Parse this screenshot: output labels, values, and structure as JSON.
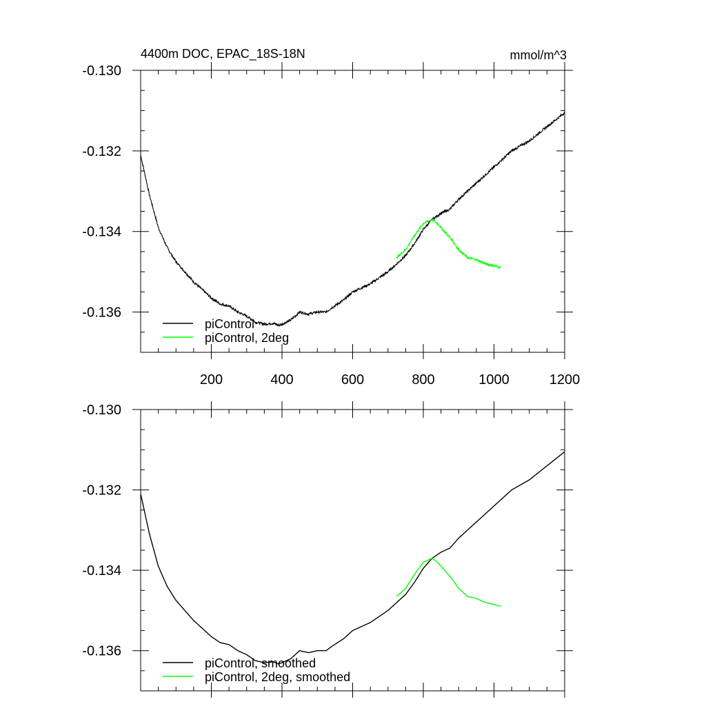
{
  "header": {
    "title": "4400m DOC, EPAC_18S-18N",
    "units": "mmol/m^3"
  },
  "colors": {
    "axis": "#000000",
    "picontrol": "#000000",
    "picontrol_2deg": "#00ff00"
  },
  "chart_data": [
    {
      "type": "line",
      "panel": "top",
      "title": "4400m DOC, EPAC_18S-18N",
      "units": "mmol/m^3",
      "xlabel": "",
      "ylabel": "",
      "xlim": [
        0,
        1200
      ],
      "ylim": [
        -0.137,
        -0.13
      ],
      "xticks": [
        200,
        400,
        600,
        800,
        1000,
        1200
      ],
      "xtick_labels": [
        "200",
        "400",
        "600",
        "800",
        "1000",
        "1200"
      ],
      "yticks": [
        -0.13,
        -0.132,
        -0.134,
        -0.136
      ],
      "ytick_labels": [
        "-0.130",
        "-0.132",
        "-0.134",
        "-0.136"
      ],
      "grid": false,
      "legend_position": "bottom-left",
      "noisy": true,
      "series": [
        {
          "name": "piControl",
          "color": "#000000",
          "x": [
            0,
            25,
            50,
            75,
            100,
            125,
            150,
            175,
            200,
            225,
            250,
            275,
            300,
            325,
            350,
            375,
            390,
            400,
            425,
            450,
            475,
            500,
            525,
            540,
            575,
            600,
            650,
            700,
            725,
            750,
            775,
            800,
            825,
            850,
            875,
            900,
            950,
            1000,
            1050,
            1100,
            1150,
            1200
          ],
          "y": [
            -0.1321,
            -0.1331,
            -0.1339,
            -0.1344,
            -0.13475,
            -0.135,
            -0.13525,
            -0.13545,
            -0.13565,
            -0.1358,
            -0.13585,
            -0.136,
            -0.1361,
            -0.13625,
            -0.1363,
            -0.13628,
            -0.13633,
            -0.1363,
            -0.1362,
            -0.136,
            -0.13605,
            -0.136,
            -0.136,
            -0.1359,
            -0.1357,
            -0.1355,
            -0.1353,
            -0.135,
            -0.1348,
            -0.1346,
            -0.1343,
            -0.13395,
            -0.1337,
            -0.13355,
            -0.13345,
            -0.1332,
            -0.1328,
            -0.1324,
            -0.132,
            -0.13175,
            -0.1314,
            -0.13105
          ]
        },
        {
          "name": "piControl, 2deg",
          "color": "#00ff00",
          "x": [
            725,
            750,
            775,
            800,
            825,
            840,
            860,
            880,
            900,
            925,
            950,
            975,
            1000,
            1020
          ],
          "y": [
            -0.13465,
            -0.13445,
            -0.1341,
            -0.1338,
            -0.1337,
            -0.1338,
            -0.134,
            -0.1342,
            -0.13445,
            -0.13465,
            -0.1347,
            -0.1348,
            -0.13485,
            -0.1349
          ]
        }
      ]
    },
    {
      "type": "line",
      "panel": "bottom",
      "xlabel": "",
      "ylabel": "",
      "xlim": [
        0,
        1200
      ],
      "ylim": [
        -0.137,
        -0.13
      ],
      "xticks": [
        200,
        400,
        600,
        800,
        1000,
        1200
      ],
      "yticks": [
        -0.13,
        -0.132,
        -0.134,
        -0.136
      ],
      "ytick_labels": [
        "-0.130",
        "-0.132",
        "-0.134",
        "-0.136"
      ],
      "grid": false,
      "legend_position": "bottom-left",
      "noisy": false,
      "series": [
        {
          "name": "piControl, smoothed",
          "color": "#000000",
          "x": [
            0,
            25,
            50,
            75,
            100,
            125,
            150,
            175,
            200,
            225,
            250,
            275,
            300,
            325,
            350,
            375,
            390,
            400,
            425,
            450,
            475,
            500,
            525,
            540,
            575,
            600,
            650,
            700,
            725,
            750,
            775,
            800,
            825,
            850,
            875,
            900,
            950,
            1000,
            1050,
            1100,
            1150,
            1200
          ],
          "y": [
            -0.1321,
            -0.1331,
            -0.1339,
            -0.1344,
            -0.13475,
            -0.135,
            -0.13525,
            -0.13545,
            -0.13565,
            -0.1358,
            -0.13585,
            -0.136,
            -0.1361,
            -0.13625,
            -0.1363,
            -0.13628,
            -0.13633,
            -0.1363,
            -0.1362,
            -0.136,
            -0.13605,
            -0.136,
            -0.136,
            -0.1359,
            -0.1357,
            -0.1355,
            -0.1353,
            -0.135,
            -0.1348,
            -0.1346,
            -0.1343,
            -0.13395,
            -0.1337,
            -0.13355,
            -0.13345,
            -0.1332,
            -0.1328,
            -0.1324,
            -0.132,
            -0.13175,
            -0.1314,
            -0.13105
          ]
        },
        {
          "name": "piControl, 2deg, smoothed",
          "color": "#00ff00",
          "x": [
            725,
            750,
            775,
            800,
            825,
            840,
            860,
            880,
            900,
            925,
            950,
            975,
            1000,
            1020
          ],
          "y": [
            -0.13465,
            -0.13445,
            -0.1341,
            -0.1338,
            -0.1337,
            -0.1338,
            -0.134,
            -0.1342,
            -0.13445,
            -0.13465,
            -0.1347,
            -0.1348,
            -0.13485,
            -0.1349
          ]
        }
      ]
    }
  ]
}
